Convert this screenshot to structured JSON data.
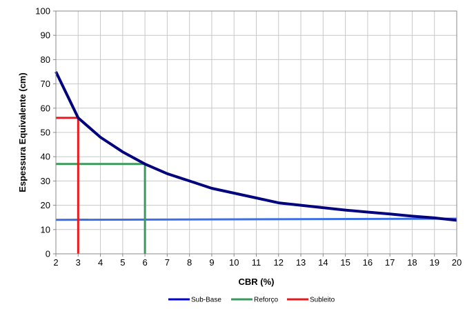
{
  "chart_data": {
    "type": "line",
    "xlabel": "CBR (%)",
    "ylabel": "Espessura Equivalente (cm)",
    "xlim": [
      2,
      20
    ],
    "ylim": [
      0,
      100
    ],
    "x_ticks": [
      "2",
      "3",
      "4",
      "5",
      "6",
      "7",
      "8",
      "9",
      "10",
      "11",
      "12",
      "13",
      "14",
      "15",
      "16",
      "17",
      "18",
      "19",
      "20"
    ],
    "y_ticks": [
      "0",
      "10",
      "20",
      "30",
      "40",
      "50",
      "60",
      "70",
      "80",
      "90",
      "100"
    ],
    "grid": true,
    "legend_position": "bottom",
    "series": [
      {
        "name": "Sub-Base",
        "color": "#00007f",
        "x": [
          2,
          3,
          4,
          5,
          6,
          7,
          8,
          9,
          10,
          11,
          12,
          13,
          14,
          15,
          16,
          17,
          18,
          19,
          20
        ],
        "y": [
          75,
          56,
          48,
          42,
          37,
          33,
          30,
          27,
          25,
          23,
          21,
          20,
          19,
          18,
          17.2,
          16.4,
          15.5,
          14.8,
          13.8
        ]
      },
      {
        "name": "",
        "color": "#3c6ee6",
        "x": [
          2,
          20
        ],
        "y": [
          14,
          14.5
        ]
      },
      {
        "name": "Reforço",
        "color": "#3a9a5c",
        "x": [
          2,
          6,
          6
        ],
        "y": [
          37,
          37,
          0
        ]
      },
      {
        "name": "Subleito",
        "color": "#e8181c",
        "x": [
          2,
          3,
          3
        ],
        "y": [
          56,
          56,
          0
        ]
      }
    ],
    "legend": [
      {
        "label": "Sub-Base",
        "color": "#0000cc"
      },
      {
        "label": "Reforço",
        "color": "#3a9a5c"
      },
      {
        "label": "Subleito",
        "color": "#e8181c"
      }
    ]
  }
}
